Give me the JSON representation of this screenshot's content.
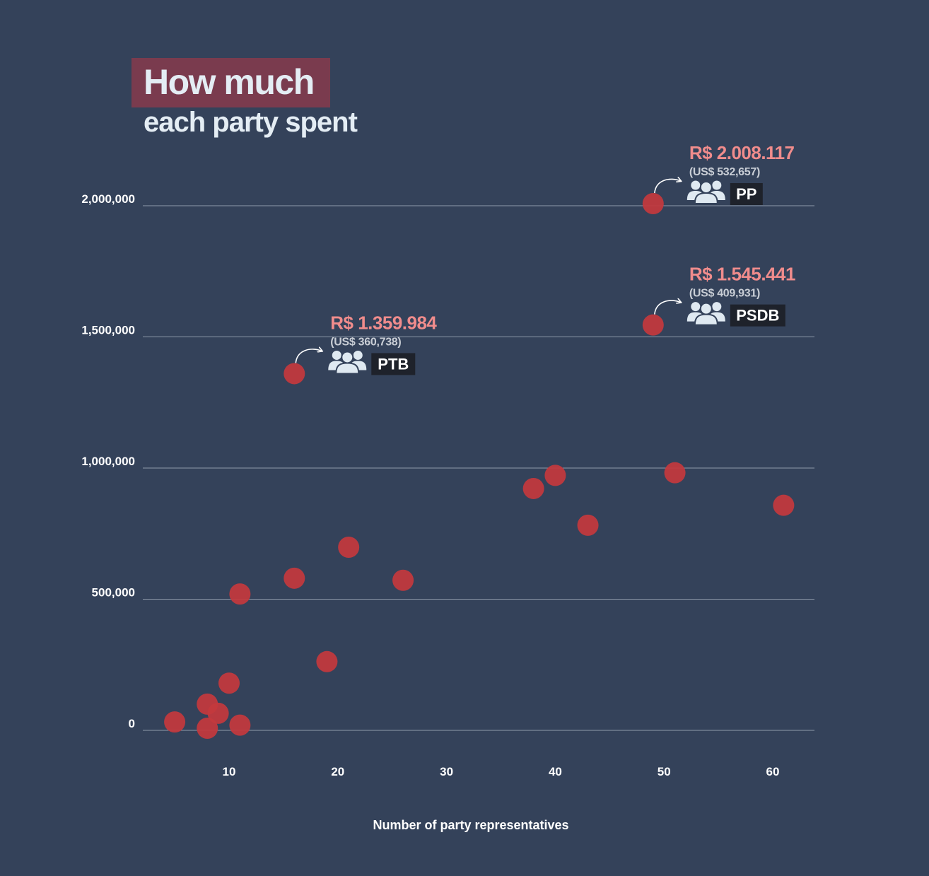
{
  "title": {
    "line1": "How much",
    "line2": "each party spent"
  },
  "colors": {
    "background": "#34425a",
    "point": "#c4393d",
    "title_highlight": "#7a3b4e",
    "annotation_value": "#f08c8c",
    "label_box": "#1e222b"
  },
  "chart_data": {
    "type": "scatter",
    "xlabel": "Number of party representatives",
    "ylabel": "",
    "xlim": [
      2,
      64
    ],
    "ylim": [
      -30000,
      2180000
    ],
    "x_ticks": [
      10,
      20,
      30,
      40,
      50,
      60
    ],
    "x_tick_labels": [
      "10",
      "20",
      "30",
      "40",
      "50",
      "60"
    ],
    "y_ticks": [
      0,
      500000,
      1000000,
      1500000,
      2000000
    ],
    "y_tick_labels": [
      "0",
      "500,000",
      "1,000,000",
      "1,500,000",
      "2,000,000"
    ],
    "grid": "horizontal",
    "points": [
      {
        "x": 5,
        "y": 32000
      },
      {
        "x": 8,
        "y": 8000
      },
      {
        "x": 8,
        "y": 100000
      },
      {
        "x": 9,
        "y": 65000
      },
      {
        "x": 10,
        "y": 180000
      },
      {
        "x": 11,
        "y": 20000
      },
      {
        "x": 11,
        "y": 520000
      },
      {
        "x": 16,
        "y": 580000
      },
      {
        "x": 16,
        "y": 1359984
      },
      {
        "x": 19,
        "y": 262000
      },
      {
        "x": 21,
        "y": 698000
      },
      {
        "x": 26,
        "y": 572000
      },
      {
        "x": 38,
        "y": 922000
      },
      {
        "x": 40,
        "y": 972000
      },
      {
        "x": 43,
        "y": 782000
      },
      {
        "x": 49,
        "y": 1545441
      },
      {
        "x": 49,
        "y": 2008117
      },
      {
        "x": 51,
        "y": 982000
      },
      {
        "x": 61,
        "y": 858000
      }
    ],
    "annotations": [
      {
        "party": "PP",
        "x": 49,
        "y": 2008117,
        "brl": "R$ 2.008.117",
        "usd": "(US$ 532,657)"
      },
      {
        "party": "PSDB",
        "x": 49,
        "y": 1545441,
        "brl": "R$ 1.545.441",
        "usd": "(US$ 409,931)"
      },
      {
        "party": "PTB",
        "x": 16,
        "y": 1359984,
        "brl": "R$ 1.359.984",
        "usd": "(US$ 360,738)"
      }
    ]
  }
}
